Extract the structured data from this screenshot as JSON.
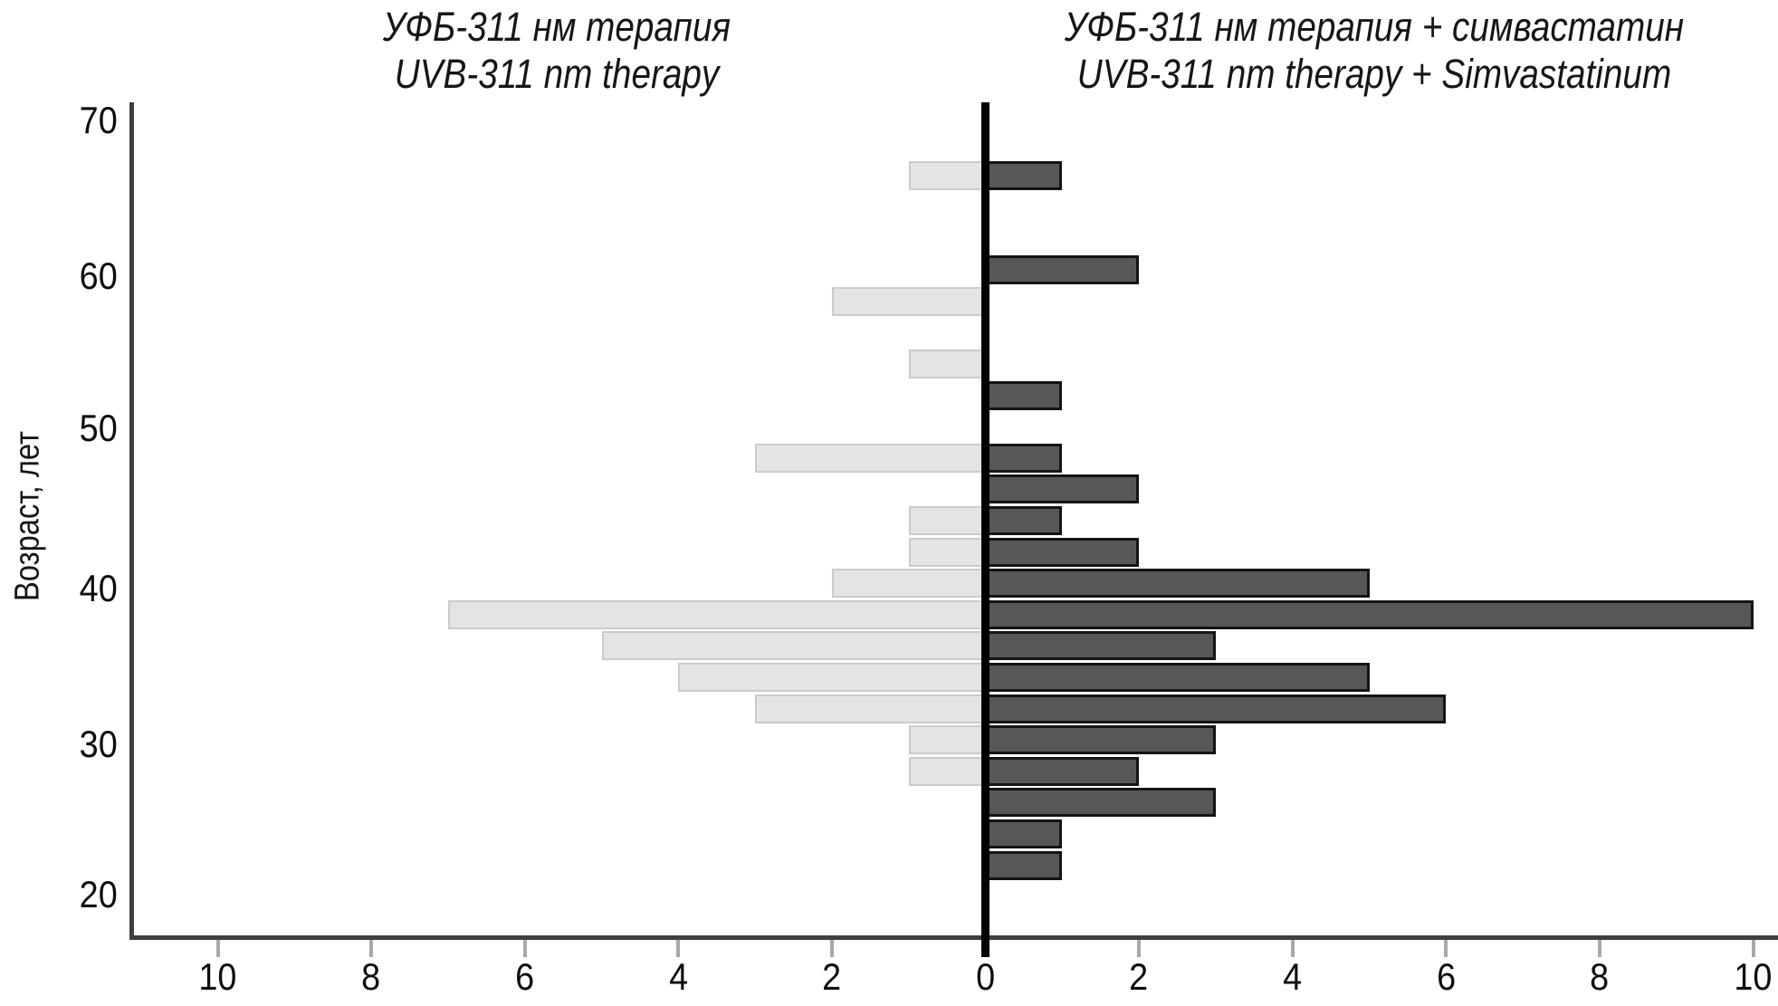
{
  "chart_data": {
    "type": "bar",
    "subtype": "diverging-horizontal-age-histogram",
    "title_left": {
      "ru": "УФБ-311 нм терапия",
      "en": "UVB-311 nm therapy"
    },
    "title_right": {
      "ru": "УФБ-311 нм терапия + симвастатин",
      "en": "UVB-311 nm therapy + Simvastatinum"
    },
    "ylabel": "Возраст, лет",
    "age_bins": [
      22,
      24,
      26,
      28,
      30,
      32,
      34,
      36,
      38,
      40,
      42,
      44,
      46,
      48,
      50,
      52,
      54,
      56,
      58,
      60,
      62,
      64,
      66
    ],
    "bin_width_years": 2,
    "series": [
      {
        "name": "УФБ-311 нм терапия / UVB-311 nm therapy",
        "side": "left",
        "color": "#e4e4e4",
        "border_color": "#cbcbcb",
        "values": [
          0,
          0,
          0,
          1,
          1,
          3,
          4,
          5,
          7,
          2,
          1,
          1,
          0,
          3,
          0,
          0,
          1,
          0,
          2,
          0,
          0,
          0,
          1
        ]
      },
      {
        "name": "УФБ-311 нм терапия + симвастатин / UVB-311 nm therapy + Simvastatinum",
        "side": "right",
        "color": "#575757",
        "border_color": "#141414",
        "values": [
          1,
          1,
          3,
          2,
          3,
          6,
          5,
          3,
          10,
          5,
          2,
          1,
          2,
          1,
          0,
          1,
          0,
          0,
          0,
          2,
          0,
          0,
          1
        ]
      }
    ],
    "x_axis": {
      "ticks": [
        -10,
        -8,
        -6,
        -4,
        -2,
        0,
        2,
        4,
        6,
        8,
        10
      ],
      "labels": [
        "10",
        "8",
        "6",
        "4",
        "2",
        "0",
        "2",
        "4",
        "6",
        "8",
        "10"
      ],
      "range_per_side": [
        0,
        10
      ],
      "grid": false
    },
    "y_axis": {
      "ticks": [
        70,
        60,
        50,
        40,
        30,
        20
      ],
      "labels": [
        "70",
        "60",
        "50",
        "40",
        "30",
        "20"
      ],
      "range": [
        20,
        70
      ]
    }
  },
  "colors": {
    "background": "#ffffff",
    "axis": "#3f3f3f",
    "zero_line": "#000000",
    "tick_mark": "#a8a8a8",
    "text": "#111111"
  }
}
